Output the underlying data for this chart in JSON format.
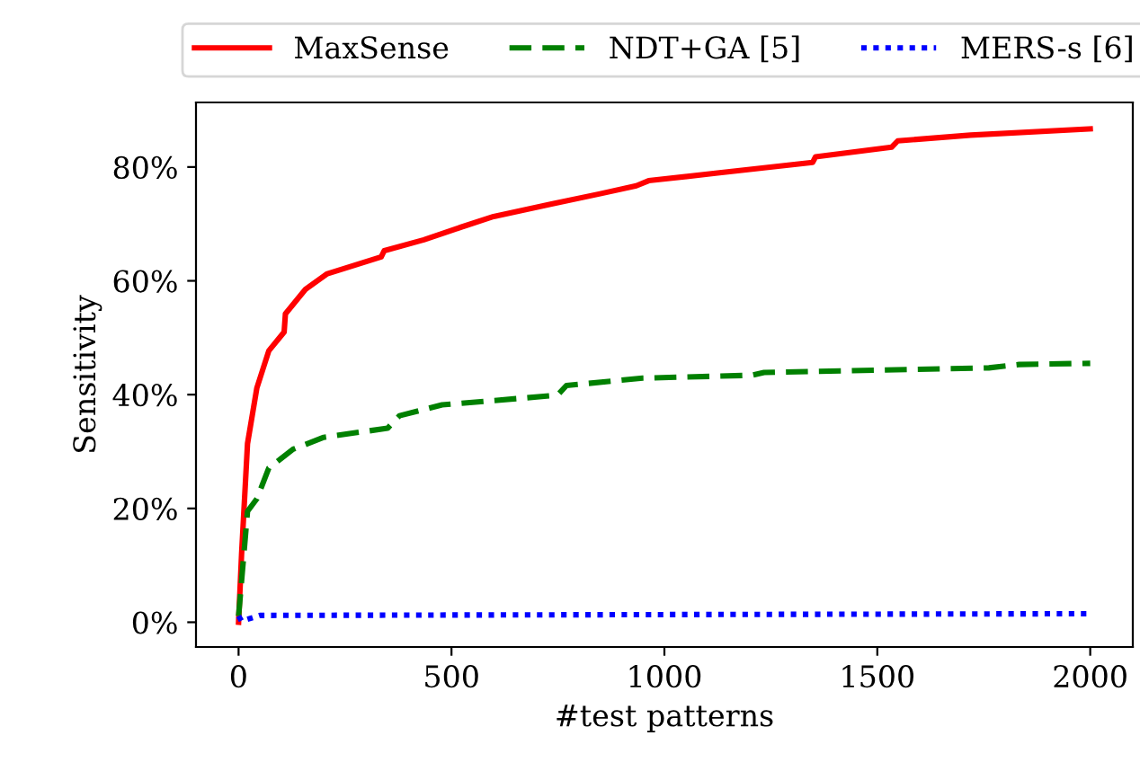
{
  "chart_data": {
    "type": "line",
    "xlabel": "#test patterns",
    "ylabel": "Sensitivity",
    "xlim": [
      -100,
      2100
    ],
    "xticks": [
      0,
      500,
      1000,
      1500,
      2000
    ],
    "ylim": [
      -4.35,
      91.35
    ],
    "yticks": [
      {
        "value": 0,
        "label": "0%"
      },
      {
        "value": 20,
        "label": "20%"
      },
      {
        "value": 40,
        "label": "40%"
      },
      {
        "value": 60,
        "label": "60%"
      },
      {
        "value": 80,
        "label": "80%"
      }
    ],
    "grid": false,
    "legend": "top",
    "series": [
      {
        "name": "MaxSense",
        "color": "#ff0000",
        "line_style": "solid",
        "x": [
          0,
          7,
          21,
          43,
          71,
          107,
          110,
          157,
          207,
          335,
          342,
          435,
          521,
          599,
          735,
          849,
          934,
          963,
          1120,
          1348,
          1355,
          1534,
          1548,
          1719,
          2000
        ],
        "values": [
          0,
          11.9,
          31.4,
          41.2,
          47.7,
          51,
          54.2,
          58.5,
          61.2,
          64.2,
          65.3,
          67.2,
          69.4,
          71.3,
          73.5,
          75.3,
          76.7,
          77.6,
          78.9,
          80.8,
          81.8,
          83.5,
          84.6,
          85.6,
          86.7
        ]
      },
      {
        "name": "NDT+GA [5]",
        "color": "#008000",
        "line_style": "dashed",
        "x": [
          0,
          21,
          43,
          71,
          128,
          200,
          350,
          378,
          478,
          749,
          770,
          949,
          1205,
          1234,
          1762,
          1833,
          2000
        ],
        "values": [
          1.1,
          19.5,
          21.7,
          27.1,
          30.4,
          32.5,
          34.1,
          36.3,
          38.2,
          39.9,
          41.6,
          42.9,
          43.4,
          43.9,
          44.7,
          45.3,
          45.5
        ]
      },
      {
        "name": "MERS-s [6]",
        "color": "#0000ff",
        "line_style": "dotted",
        "x": [
          0,
          7,
          50,
          2000
        ],
        "values": [
          1.1,
          0.2,
          1.2,
          1.5
        ]
      }
    ]
  }
}
